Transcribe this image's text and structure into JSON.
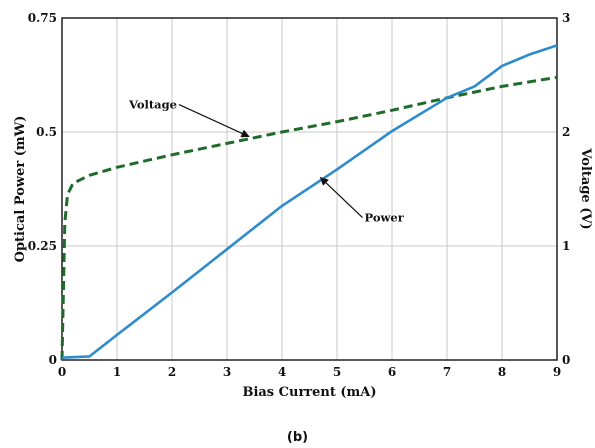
{
  "chart_data": {
    "type": "line",
    "xlabel": "Bias Current (mA)",
    "ylabel_left": "Optical Power (mW)",
    "ylabel_right": "Voltage (V)",
    "caption": "(b)",
    "xlim": [
      0,
      9
    ],
    "ylim_left": [
      0,
      0.75
    ],
    "ylim_right": [
      0,
      3
    ],
    "x_ticks": [
      "0",
      "1",
      "2",
      "3",
      "4",
      "5",
      "6",
      "7",
      "8",
      "9"
    ],
    "y_left_ticks": [
      "0",
      "0.25",
      "0.5",
      "0.75"
    ],
    "y_right_ticks": [
      "0",
      "1",
      "2",
      "3"
    ],
    "grid": true,
    "series": [
      {
        "name": "Voltage",
        "axis": "right",
        "style": "dashed",
        "color": "#1f6b2a",
        "points": [
          [
            0,
            0
          ],
          [
            0.05,
            1.2
          ],
          [
            0.1,
            1.45
          ],
          [
            0.2,
            1.55
          ],
          [
            0.5,
            1.62
          ],
          [
            1,
            1.69
          ],
          [
            2,
            1.8
          ],
          [
            3,
            1.9
          ],
          [
            3.5,
            1.95
          ],
          [
            4,
            2.0
          ],
          [
            5,
            2.09
          ],
          [
            6,
            2.19
          ],
          [
            7,
            2.3
          ],
          [
            8,
            2.4
          ],
          [
            9,
            2.48
          ]
        ]
      },
      {
        "name": "Power",
        "axis": "left",
        "style": "solid",
        "color": "#2e8ccc",
        "points": [
          [
            0,
            0.005
          ],
          [
            0.5,
            0.008
          ],
          [
            1,
            0.055
          ],
          [
            2,
            0.148
          ],
          [
            3,
            0.243
          ],
          [
            4,
            0.338
          ],
          [
            5,
            0.418
          ],
          [
            6,
            0.502
          ],
          [
            7,
            0.575
          ],
          [
            7.5,
            0.6
          ],
          [
            8,
            0.645
          ],
          [
            8.5,
            0.67
          ],
          [
            9,
            0.69
          ]
        ]
      }
    ],
    "annotations": [
      {
        "text": "Voltage",
        "x": 3.4,
        "y": 1.96,
        "axis": "right"
      },
      {
        "text": "Power",
        "x": 4.7,
        "y": 0.4,
        "axis": "left"
      }
    ]
  },
  "colors": {
    "voltage": "#1f6b2a",
    "power": "#2e8ccc",
    "grid": "#c8c8c8",
    "axis": "#111111"
  }
}
